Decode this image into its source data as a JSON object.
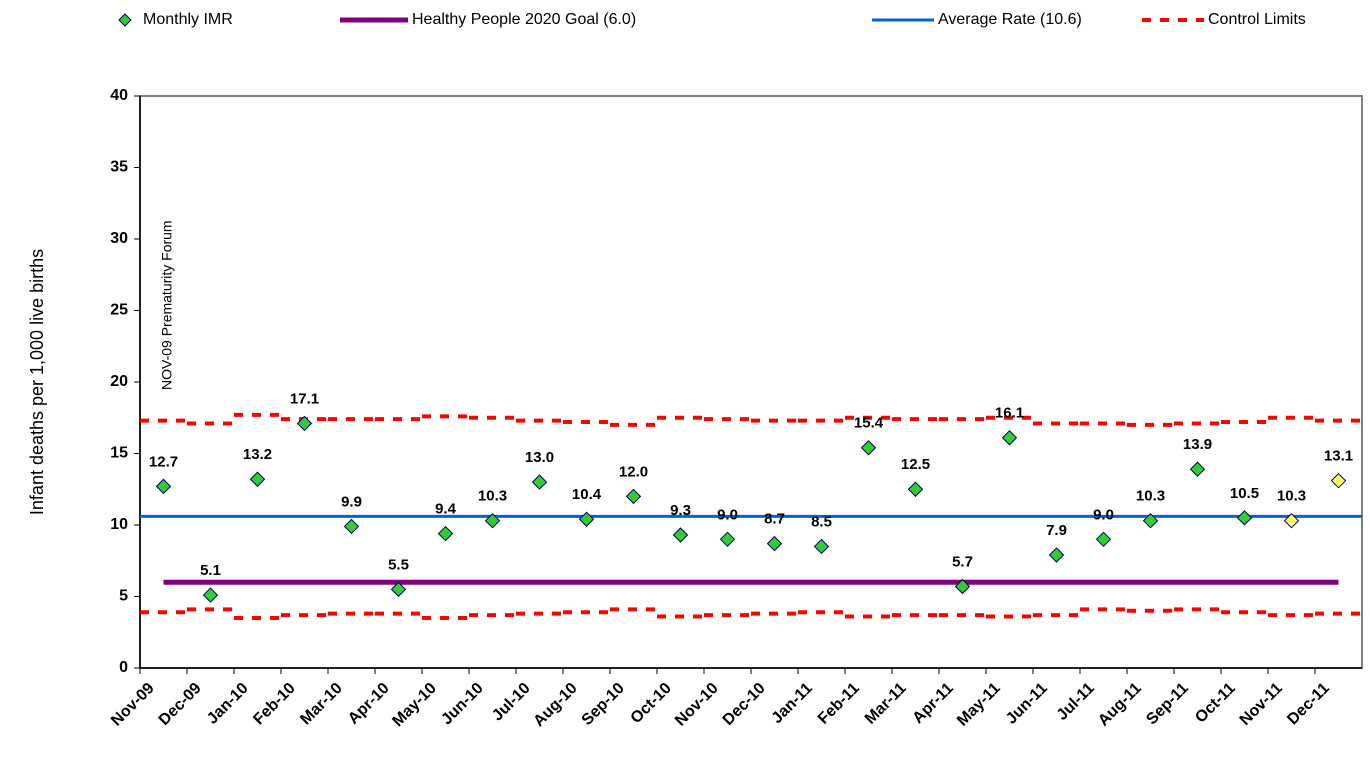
{
  "chart_data": {
    "type": "control",
    "y_label": "Infant deaths per 1,000 live births",
    "annotation": "NOV-09 Prematurity Forum",
    "categories": [
      "Nov-09",
      "Dec-09",
      "Jan-10",
      "Feb-10",
      "Mar-10",
      "Apr-10",
      "May-10",
      "Jun-10",
      "Jul-10",
      "Aug-10",
      "Sep-10",
      "Oct-10",
      "Nov-10",
      "Dec-10",
      "Jan-11",
      "Feb-11",
      "Mar-11",
      "Apr-11",
      "May-11",
      "Jun-11",
      "Jul-11",
      "Aug-11",
      "Sep-11",
      "Oct-11",
      "Nov-11",
      "Dec-11"
    ],
    "ylim": [
      0,
      40
    ],
    "yticks": [
      0,
      5,
      10,
      15,
      20,
      25,
      30,
      35,
      40
    ],
    "series": [
      {
        "name": "Monthly IMR",
        "kind": "points",
        "color": "#33cc33",
        "colors": [
          "#33cc33",
          "#33cc33",
          "#33cc33",
          "#33cc33",
          "#33cc33",
          "#33cc33",
          "#33cc33",
          "#33cc33",
          "#33cc33",
          "#33cc33",
          "#33cc33",
          "#33cc33",
          "#33cc33",
          "#33cc33",
          "#33cc33",
          "#33cc33",
          "#33cc33",
          "#33cc33",
          "#33cc33",
          "#33cc33",
          "#33cc33",
          "#33cc33",
          "#33cc33",
          "#33cc33",
          "#ffff66",
          "#ffff66"
        ],
        "values": [
          12.7,
          5.1,
          13.2,
          17.1,
          9.9,
          5.5,
          9.4,
          10.3,
          13.0,
          10.4,
          12.0,
          9.3,
          9.0,
          8.7,
          8.5,
          15.4,
          12.5,
          5.7,
          16.1,
          7.9,
          9.0,
          10.3,
          13.9,
          10.5,
          10.3,
          13.1
        ],
        "value_labels": [
          "12.7",
          "5.1",
          "13.2",
          "17.1",
          "9.9",
          "5.5",
          "9.4",
          "10.3",
          "13.0",
          "10.4",
          "12.0",
          "9.3",
          "9.0",
          "8.7",
          "8.5",
          "15.4",
          "12.5",
          "5.7",
          "16.1",
          "7.9",
          "9.0",
          "10.3",
          "13.9",
          "10.5",
          "10.3",
          "13.1"
        ]
      },
      {
        "name": "Healthy People 2020 Goal (6.0)",
        "kind": "goal",
        "color": "#800080",
        "value": 6.0
      },
      {
        "name": "Average Rate (10.6)",
        "kind": "average",
        "color": "#0066cc",
        "value": 10.6
      },
      {
        "name": "Control Limits",
        "kind": "limits",
        "color": "#ff0000",
        "upper": [
          17.3,
          17.1,
          17.7,
          17.4,
          17.4,
          17.4,
          17.6,
          17.5,
          17.3,
          17.2,
          17.0,
          17.5,
          17.4,
          17.3,
          17.3,
          17.5,
          17.4,
          17.4,
          17.5,
          17.1,
          17.1,
          17.0,
          17.1,
          17.2,
          17.5,
          17.3
        ],
        "lower": [
          3.9,
          4.1,
          3.5,
          3.7,
          3.8,
          3.8,
          3.5,
          3.7,
          3.8,
          3.9,
          4.1,
          3.6,
          3.7,
          3.8,
          3.9,
          3.6,
          3.7,
          3.7,
          3.6,
          3.7,
          4.1,
          4.0,
          4.1,
          3.9,
          3.7,
          3.8
        ]
      }
    ]
  }
}
